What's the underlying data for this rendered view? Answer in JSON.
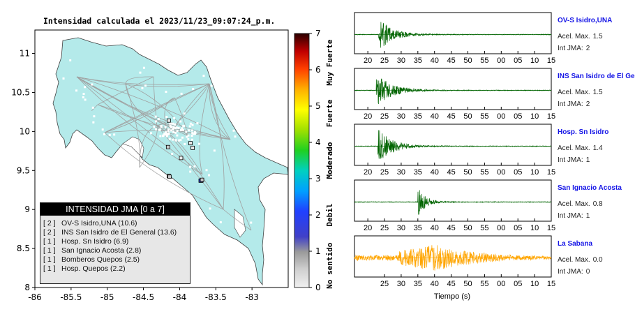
{
  "map": {
    "title": "Intensidad calculada el 2023/11/23_09:07:24_p.m.",
    "x_ticks": [
      "-86",
      "-85.5",
      "-85",
      "-84.5",
      "-84",
      "-83.5",
      "-83"
    ],
    "y_ticks": [
      "11",
      "10.5",
      "10",
      "9.5",
      "9",
      "8.5",
      "8"
    ],
    "land_color": "#b4eaea",
    "road_color": "#a0a0a0"
  },
  "colorbar": {
    "ticks": [
      "0",
      "1",
      "2",
      "3",
      "4",
      "5",
      "6",
      "7"
    ],
    "categories": [
      "No sentido",
      "Debil",
      "Moderado",
      "Fuerte",
      "Muy Fuerte"
    ]
  },
  "legend": {
    "title": "INTENSIDAD JMA [0 a 7]",
    "items": [
      {
        "level": "[ 2 ]",
        "text": "OV-S Isidro,UNA (10.6)"
      },
      {
        "level": "[ 2 ]",
        "text": "INS San Isidro de El General (13.6)"
      },
      {
        "level": "[ 1 ]",
        "text": "Hosp. Sn Isidro (6.9)"
      },
      {
        "level": "[ 1 ]",
        "text": "San Ignacio Acosta (2.8)"
      },
      {
        "level": "[ 1 ]",
        "text": "Bomberos Quepos (2.5)"
      },
      {
        "level": "[ 1 ]",
        "text": "Hosp. Quepos (2.2)"
      }
    ]
  },
  "waveforms": {
    "x_ticks": [
      "20",
      "25",
      "30",
      "35",
      "40",
      "45",
      "50",
      "55",
      "00",
      "05",
      "10",
      "15"
    ],
    "xlabel": "Tiempo (s)",
    "accel_prefix": "Acel. Max.",
    "int_prefix": "Int JMA:",
    "panels": [
      {
        "station": "OV-S Isidro,UNA",
        "accel": "1.5",
        "jma": "2",
        "color": "#006400",
        "onset": 23.2,
        "peak": 0.95,
        "decay": 4.0,
        "ticks_from": 20
      },
      {
        "station": "INS San Isidro de El Ge",
        "accel": "1.5",
        "jma": "2",
        "color": "#006400",
        "onset": 22.5,
        "peak": 0.95,
        "decay": 4.5,
        "ticks_from": 20
      },
      {
        "station": "Hosp. Sn Isidro",
        "accel": "1.4",
        "jma": "1",
        "color": "#006400",
        "onset": 23.0,
        "peak": 0.95,
        "decay": 4.2,
        "ticks_from": 20
      },
      {
        "station": "San Ignacio Acosta",
        "accel": "0.8",
        "jma": "1",
        "color": "#006400",
        "onset": 35.0,
        "peak": 0.95,
        "decay": 2.0,
        "ticks_from": 20
      },
      {
        "station": "La Sabana",
        "accel": "0.0",
        "jma": "0",
        "color": "#ffa500",
        "onset": 29.5,
        "peak": 0.8,
        "decay": 14.0,
        "ticks_from": 25
      }
    ]
  },
  "chart_data": [
    {
      "type": "scatter",
      "title": "Intensidad calculada el 2023/11/23_09:07:24_p.m.",
      "xlim": [
        -86,
        -82.5
      ],
      "ylim": [
        8,
        11.3
      ],
      "stations": [
        {
          "name": "OV-S Isidro,UNA",
          "lon": -83.7,
          "lat": 9.37,
          "jma": 2
        },
        {
          "name": "INS San Isidro de El General",
          "lon": -83.71,
          "lat": 9.37,
          "jma": 2
        },
        {
          "name": "Hosp. Sn Isidro",
          "lon": -83.69,
          "lat": 9.38,
          "jma": 1
        },
        {
          "name": "San Ignacio Acosta",
          "lon": -84.16,
          "lat": 9.8,
          "jma": 1
        },
        {
          "name": "Bomberos Quepos",
          "lon": -84.15,
          "lat": 9.43,
          "jma": 1
        },
        {
          "name": "Hosp. Quepos",
          "lon": -84.14,
          "lat": 9.42,
          "jma": 1
        },
        {
          "name": "",
          "lon": -84.15,
          "lat": 10.14,
          "jma": 0
        },
        {
          "name": "",
          "lon": -83.85,
          "lat": 9.85,
          "jma": 0
        },
        {
          "name": "",
          "lon": -83.82,
          "lat": 9.79,
          "jma": 0
        },
        {
          "name": "",
          "lon": -83.98,
          "lat": 9.66,
          "jma": 0
        }
      ]
    },
    {
      "type": "line",
      "xlabel": "Tiempo (s)",
      "series": [
        {
          "name": "OV-S Isidro,UNA",
          "peak_accel": 1.5,
          "jma": 2
        },
        {
          "name": "INS San Isidro de El Ge",
          "peak_accel": 1.5,
          "jma": 2
        },
        {
          "name": "Hosp. Sn Isidro",
          "peak_accel": 1.4,
          "jma": 1
        },
        {
          "name": "San Ignacio Acosta",
          "peak_accel": 0.8,
          "jma": 1
        },
        {
          "name": "La Sabana",
          "peak_accel": 0.0,
          "jma": 0
        }
      ]
    }
  ]
}
